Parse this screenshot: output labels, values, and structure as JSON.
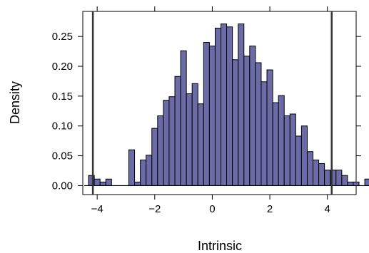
{
  "chart_data": {
    "type": "bar",
    "title": "",
    "xlabel": "Intrinsic",
    "ylabel": "Density",
    "xlim": [
      -4.5,
      5.0
    ],
    "ylim": [
      -0.015,
      0.292
    ],
    "x_ticks": [
      -4,
      -2,
      0,
      2,
      4
    ],
    "x_tick_labels": [
      "−4",
      "−2",
      "0",
      "2",
      "4"
    ],
    "y_ticks": [
      0.0,
      0.05,
      0.1,
      0.15,
      0.2,
      0.25
    ],
    "y_tick_labels": [
      "0.00",
      "0.05",
      "0.10",
      "0.15",
      "0.20",
      "0.25"
    ],
    "bin_width": 0.2,
    "bin_start": -4.3,
    "values": [
      0.017,
      0.011,
      0.006,
      0.011,
      0.0,
      0.0,
      0.0,
      0.06,
      0.006,
      0.043,
      0.051,
      0.096,
      0.117,
      0.143,
      0.149,
      0.183,
      0.226,
      0.154,
      0.171,
      0.137,
      0.24,
      0.234,
      0.264,
      0.271,
      0.266,
      0.211,
      0.271,
      0.217,
      0.234,
      0.206,
      0.174,
      0.194,
      0.139,
      0.151,
      0.117,
      0.12,
      0.083,
      0.1,
      0.057,
      0.043,
      0.037,
      0.026,
      0.026,
      0.026,
      0.017,
      0.006,
      0.006,
      0.0,
      0.011
    ],
    "vertical_lines": [
      -4.15,
      4.15
    ],
    "bar_color": "#6b6ba8",
    "bar_edge_color": "#000000",
    "line_color": "#333333",
    "grid": false,
    "legend": "none"
  }
}
